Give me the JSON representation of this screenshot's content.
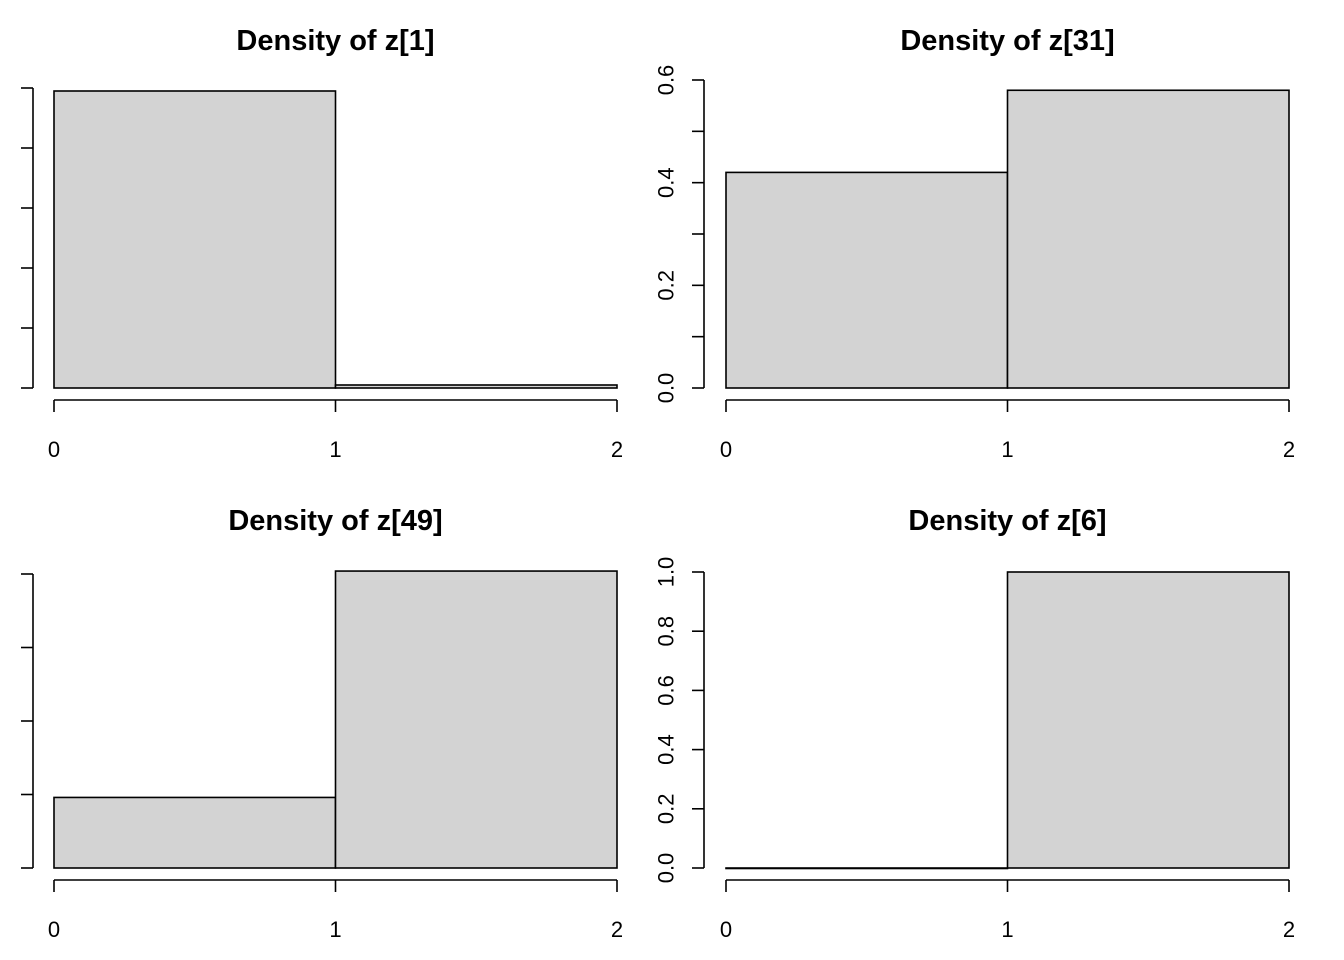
{
  "chart_data": [
    {
      "type": "bar",
      "title": "Density of z[1]",
      "bins": [
        [
          0,
          1
        ],
        [
          1,
          2
        ]
      ],
      "values": [
        0.99,
        0.01
      ],
      "xlim": [
        0,
        2
      ],
      "ylim": [
        0,
        1
      ],
      "xticks": [
        "0",
        "1",
        "2"
      ],
      "yticks": [],
      "ytick_marks": [
        0,
        0.2,
        0.4,
        0.6,
        0.8,
        1.0
      ],
      "bar_color": "#d3d3d3",
      "grid": false,
      "legend": "none"
    },
    {
      "type": "bar",
      "title": "Density of z[31]",
      "bins": [
        [
          0,
          1
        ],
        [
          1,
          2
        ]
      ],
      "values": [
        0.42,
        0.58
      ],
      "xlim": [
        0,
        2
      ],
      "ylim": [
        0,
        0.6
      ],
      "xticks": [
        "0",
        "1",
        "2"
      ],
      "yticks": [
        "0.0",
        "0.2",
        "0.4",
        "0.6"
      ],
      "ytick_marks": [
        0,
        0.1,
        0.2,
        0.3,
        0.4,
        0.5,
        0.6
      ],
      "bar_color": "#d3d3d3",
      "grid": false,
      "legend": "none"
    },
    {
      "type": "bar",
      "title": "Density of z[49]",
      "bins": [
        [
          0,
          1
        ],
        [
          1,
          2
        ]
      ],
      "values": [
        0.24,
        1.01
      ],
      "xlim": [
        0,
        2
      ],
      "ylim": [
        0,
        1.0
      ],
      "xticks": [
        "0",
        "1",
        "2"
      ],
      "yticks": [],
      "ytick_marks": [
        0,
        0.25,
        0.5,
        0.75,
        1.0
      ],
      "bar_color": "#d3d3d3",
      "grid": false,
      "legend": "none"
    },
    {
      "type": "bar",
      "title": "Density of z[6]",
      "bins": [
        [
          0,
          1
        ],
        [
          1,
          2
        ]
      ],
      "values": [
        0.0,
        1.0
      ],
      "xlim": [
        0,
        2
      ],
      "ylim": [
        0,
        1.0
      ],
      "xticks": [
        "0",
        "1",
        "2"
      ],
      "yticks": [
        "0.0",
        "0.2",
        "0.4",
        "0.6",
        "0.8",
        "1.0"
      ],
      "ytick_marks": [
        0,
        0.2,
        0.4,
        0.6,
        0.8,
        1.0
      ],
      "bar_color": "#d3d3d3",
      "grid": false,
      "legend": "none"
    }
  ]
}
